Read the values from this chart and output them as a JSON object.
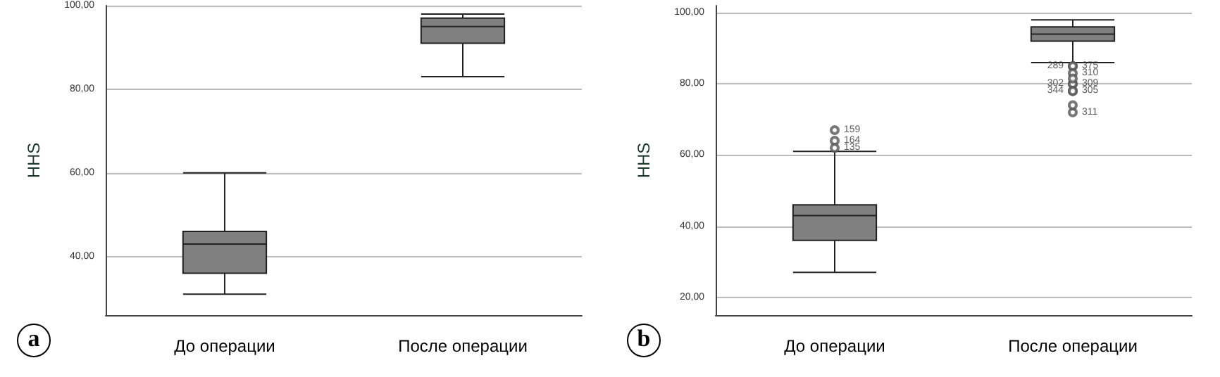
{
  "chart_data": [
    {
      "type": "box",
      "ylabel": "HHS",
      "categories": [
        "До операции",
        "После операции"
      ],
      "color": "#808080",
      "boxes": [
        {
          "low": 31,
          "q1": 36,
          "median": 43,
          "q3": 46,
          "high": 60
        },
        {
          "low": 83,
          "q1": 91,
          "median": 95,
          "q3": 97,
          "high": 98
        }
      ],
      "ylim": [
        26,
        100
      ],
      "yticks": [
        {
          "value": 40,
          "label": "40,00"
        },
        {
          "value": 60,
          "label": "60,00"
        },
        {
          "value": 80,
          "label": "80,00"
        },
        {
          "value": 100,
          "label": "100,00"
        }
      ],
      "grid": "y",
      "annotations": [
        "a"
      ]
    },
    {
      "type": "box",
      "ylabel": "HHS",
      "categories": [
        "До операции",
        "После операции"
      ],
      "color": "#808080",
      "boxes": [
        {
          "low": 27,
          "q1": 36,
          "median": 43,
          "q3": 46,
          "high": 61,
          "outliers": [
            67,
            64,
            62
          ]
        },
        {
          "low": 86,
          "q1": 92,
          "median": 94,
          "q3": 96,
          "high": 98,
          "outliers": [
            85,
            85,
            83,
            80,
            80,
            78,
            78,
            72,
            74,
            81.5
          ]
        }
      ],
      "ylim": [
        15,
        102
      ],
      "yticks": [
        {
          "value": 20,
          "label": "20,00"
        },
        {
          "value": 40,
          "label": "40,00"
        },
        {
          "value": 60,
          "label": "60,00"
        },
        {
          "value": 80,
          "label": "80,00"
        },
        {
          "value": 100,
          "label": "100,00"
        }
      ],
      "grid": "y",
      "marker": "circle",
      "annotations": [
        "b",
        "159",
        "164",
        "135",
        "375",
        "289",
        "310",
        "309",
        "302",
        "305",
        "344",
        "311"
      ]
    }
  ]
}
